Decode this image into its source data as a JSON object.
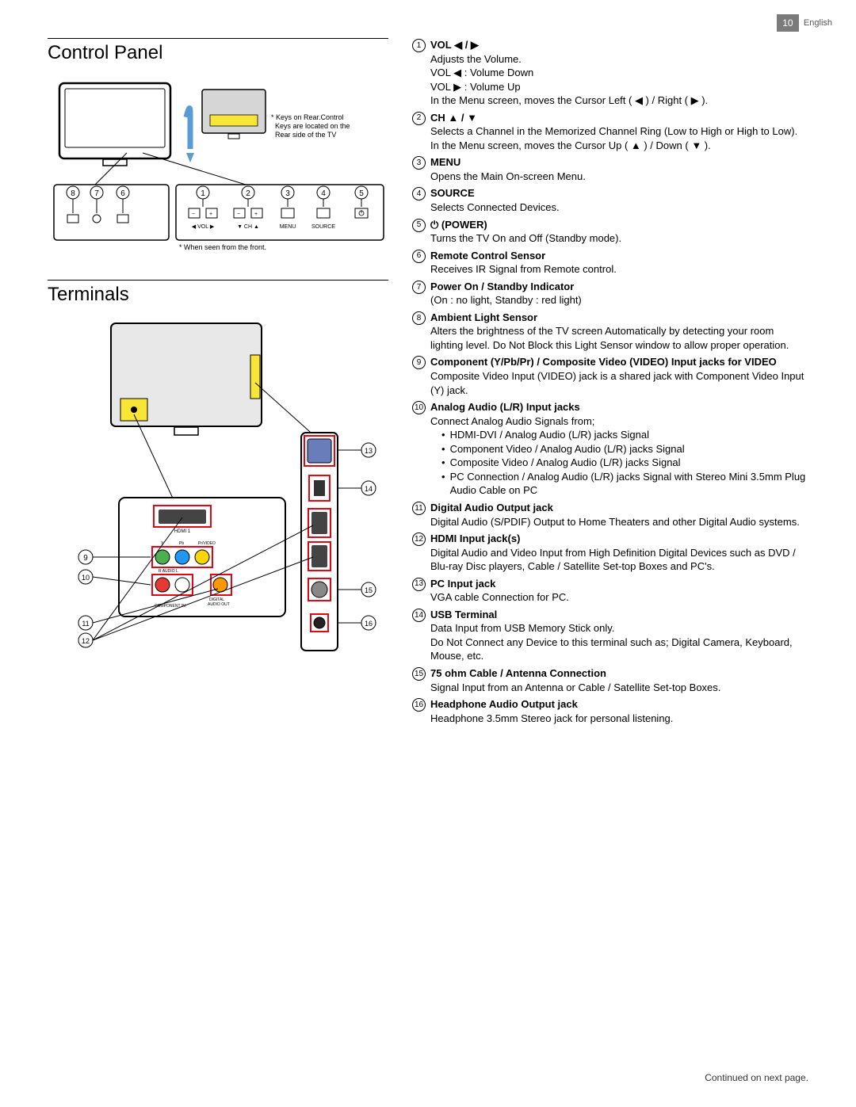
{
  "header": {
    "page_number": "10",
    "language": "English"
  },
  "sections": {
    "control_panel": {
      "title": "Control Panel"
    },
    "terminals": {
      "title": "Terminals"
    }
  },
  "control_diagram": {
    "note_rear_1": "* Keys on Rear.Control",
    "note_rear_2": "Keys are located on the",
    "note_rear_3": "Rear side of the TV",
    "front_note": "* When seen from the front.",
    "labels": {
      "vol_left": "VOL",
      "vol_arrows": "◀   ▶",
      "ch": "CH",
      "ch_arrows": "▼   ▲",
      "menu": "MENU",
      "source": "SOURCE"
    },
    "callouts_left": [
      "8",
      "7",
      "6"
    ],
    "callouts_right": [
      "1",
      "2",
      "3",
      "4",
      "5"
    ]
  },
  "terminals_diagram": {
    "left_callouts": [
      "9",
      "10",
      "11",
      "12"
    ],
    "right_callouts": [
      "13",
      "14",
      "15",
      "16"
    ]
  },
  "items": [
    {
      "num": "1",
      "title": "VOL ◀ / ▶",
      "desc": "Adjusts the Volume.\nVOL ◀ : Volume Down\nVOL ▶ : Volume Up\nIn the Menu screen, moves the Cursor Left ( ◀ ) / Right ( ▶ )."
    },
    {
      "num": "2",
      "title": "CH ▲ / ▼",
      "desc": "Selects a Channel in the Memorized Channel Ring (Low to High or High to Low). In the Menu screen, moves the Cursor Up ( ▲ ) / Down ( ▼ )."
    },
    {
      "num": "3",
      "title": "MENU",
      "desc": "Opens the Main On-screen Menu."
    },
    {
      "num": "4",
      "title": "SOURCE",
      "desc": "Selects Connected Devices."
    },
    {
      "num": "5",
      "title": "⏻ (POWER)",
      "desc": "Turns the TV On and Off (Standby mode)."
    },
    {
      "num": "6",
      "title": "Remote Control Sensor",
      "desc": "Receives IR Signal from Remote control."
    },
    {
      "num": "7",
      "title": "Power On / Standby Indicator",
      "desc": "(On : no light, Standby : red light)"
    },
    {
      "num": "8",
      "title": "Ambient Light Sensor",
      "desc": "Alters the brightness of the TV screen Automatically by detecting your room lighting level. Do Not Block this Light Sensor window to allow proper operation."
    },
    {
      "num": "9",
      "title": "Component (Y/Pb/Pr) / Composite Video (VIDEO) Input jacks for VIDEO",
      "desc": "Composite Video Input (VIDEO) jack is a shared jack with Component Video Input (Y) jack."
    },
    {
      "num": "10",
      "title": "Analog Audio (L/R) Input jacks",
      "desc": "Connect Analog Audio Signals from;",
      "bullets": [
        "HDMI-DVI / Analog Audio (L/R) jacks Signal",
        "Component Video / Analog Audio (L/R) jacks Signal",
        "Composite Video / Analog Audio (L/R) jacks Signal",
        "PC Connection / Analog Audio (L/R) jacks Signal with Stereo Mini 3.5mm Plug Audio Cable on PC"
      ]
    },
    {
      "num": "11",
      "title": "Digital Audio Output jack",
      "desc": "Digital Audio (S/PDIF) Output to Home Theaters and other Digital Audio systems."
    },
    {
      "num": "12",
      "title": "HDMI Input jack(s)",
      "desc": "Digital Audio and Video Input from High Definition Digital Devices such as DVD / Blu-ray Disc players, Cable / Satellite Set-top Boxes and PC's."
    },
    {
      "num": "13",
      "title": "PC Input jack",
      "desc": "VGA cable Connection for PC."
    },
    {
      "num": "14",
      "title": "USB Terminal",
      "desc": "Data Input from USB Memory Stick only.\nDo Not Connect any Device to this terminal such as; Digital Camera, Keyboard, Mouse, etc."
    },
    {
      "num": "15",
      "title": "75 ohm Cable / Antenna Connection",
      "desc": "Signal Input from an Antenna or Cable / Satellite Set-top Boxes."
    },
    {
      "num": "16",
      "title": "Headphone Audio Output jack",
      "desc": "Headphone 3.5mm Stereo jack for personal listening."
    }
  ],
  "footer": {
    "continued": "Continued on next page."
  },
  "colors": {
    "accent_yellow": "#f7e637",
    "accent_red": "#e30613",
    "rca_yellow": "#ffd500",
    "rca_green": "#4caf50",
    "rca_blue": "#2196f3",
    "rca_red": "#e53935",
    "rca_white": "#ffffff",
    "rca_orange": "#ff9800",
    "arrow_blue": "#5b9bd5"
  }
}
